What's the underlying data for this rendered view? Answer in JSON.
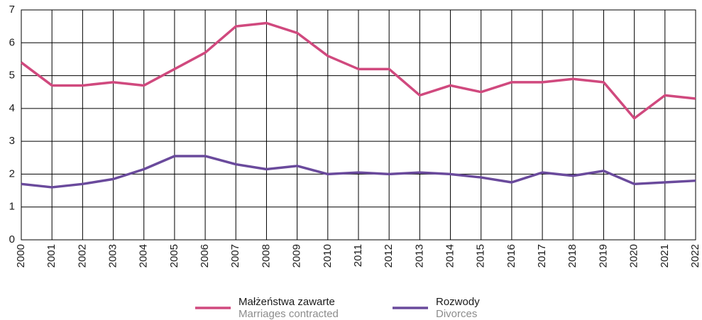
{
  "chart_data": {
    "type": "line",
    "categories": [
      "2000",
      "2001",
      "2002",
      "2003",
      "2004",
      "2005",
      "2006",
      "2007",
      "2008",
      "2009",
      "2010",
      "2011",
      "2012",
      "2013",
      "2014",
      "2015",
      "2016",
      "2017",
      "2018",
      "2019",
      "2020",
      "2021",
      "2022"
    ],
    "series": [
      {
        "name": "Małżeństwa zawarte",
        "name_en": "Marriages contracted",
        "color": "#d0497e",
        "values": [
          5.4,
          4.7,
          4.7,
          4.8,
          4.7,
          5.2,
          5.7,
          6.5,
          6.6,
          6.3,
          5.6,
          5.2,
          5.2,
          4.4,
          4.7,
          4.5,
          4.8,
          4.8,
          4.9,
          4.8,
          3.7,
          4.4,
          4.3
        ]
      },
      {
        "name": "Rozwody",
        "name_en": "Divorces",
        "color": "#6a4a9c",
        "values": [
          1.7,
          1.6,
          1.7,
          1.85,
          2.15,
          2.55,
          2.55,
          2.3,
          2.15,
          2.25,
          2.0,
          2.05,
          2.0,
          2.05,
          2.0,
          1.9,
          1.75,
          2.05,
          1.95,
          2.1,
          1.7,
          1.75,
          1.8
        ]
      }
    ],
    "ylim": [
      0,
      7
    ],
    "yticks": [
      0,
      1,
      2,
      3,
      4,
      5,
      6,
      7
    ],
    "grid": true
  }
}
